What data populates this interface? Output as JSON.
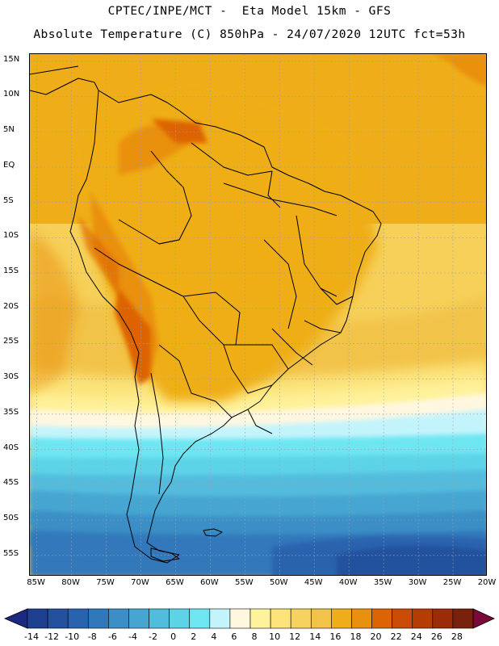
{
  "title": {
    "line1": "CPTEC/INPE/MCT -  Eta Model 15km - GFS",
    "line2": "Absolute Temperature (C) 850hPa - 24/07/2020 12UTC fct=53h"
  },
  "map": {
    "lat_labels": [
      "15N",
      "10N",
      "5N",
      "EQ",
      "5S",
      "10S",
      "15S",
      "20S",
      "25S",
      "30S",
      "35S",
      "40S",
      "45S",
      "50S",
      "55S"
    ],
    "lon_labels": [
      "85W",
      "80W",
      "75W",
      "70W",
      "65W",
      "60W",
      "55W",
      "50W",
      "45W",
      "40W",
      "35W",
      "30W",
      "25W",
      "20W"
    ],
    "grid": "dotted",
    "extent": {
      "lon": [
        -86,
        -20
      ],
      "lat": [
        -58,
        16
      ]
    }
  },
  "colorbar": {
    "ticks": [
      "-14",
      "-12",
      "-10",
      "-8",
      "-6",
      "-4",
      "-2",
      "0",
      "2",
      "4",
      "6",
      "8",
      "10",
      "12",
      "14",
      "16",
      "18",
      "20",
      "22",
      "24",
      "26",
      "28"
    ],
    "colors": [
      "#1f3f8f",
      "#24519e",
      "#2a63ad",
      "#3178bb",
      "#3b8fc6",
      "#47a6d1",
      "#52bcdd",
      "#5dd3e8",
      "#6ee6f2",
      "#c4f4fb",
      "#fff7e0",
      "#fff29c",
      "#fbe37a",
      "#f6d35e",
      "#f2c348",
      "#efae19",
      "#e9900f",
      "#dd6405",
      "#c94b05",
      "#b53c05",
      "#9a2c0a",
      "#78210d"
    ],
    "under_color": "#1a2a80",
    "over_color": "#7a0a3a"
  }
}
